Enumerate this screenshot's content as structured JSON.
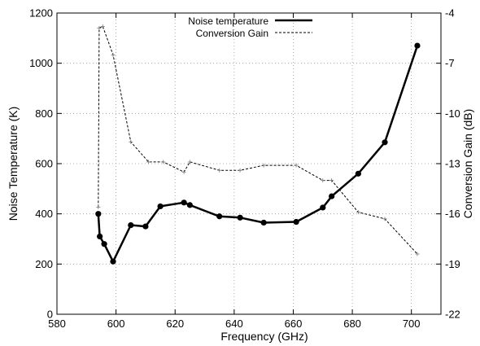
{
  "chart_data": {
    "type": "line",
    "title": "",
    "xlabel": "Frequency (GHz)",
    "ylabel": "Noise Temperature (K)",
    "y2label": "Conversion Gain (dB)",
    "xlim": [
      580,
      710
    ],
    "ylim": [
      0,
      1200
    ],
    "y2lim": [
      -22,
      -4
    ],
    "xticks": [
      580,
      600,
      620,
      640,
      660,
      680,
      700
    ],
    "yticks": [
      0,
      200,
      400,
      600,
      800,
      1000,
      1200
    ],
    "y2ticks": [
      -22,
      -19,
      -16,
      -13,
      -10,
      -7,
      -4
    ],
    "grid": true,
    "legend_position": "top-center",
    "series": [
      {
        "name": "Noise temperature",
        "axis": "left",
        "style": "solid-thick",
        "marker": "filled-circle",
        "color": "#000000",
        "x": [
          594,
          594.5,
          596,
          599,
          605,
          610,
          615,
          623,
          625,
          635,
          642,
          650,
          661,
          670,
          673,
          682,
          691,
          702
        ],
        "y": [
          400,
          310,
          280,
          210,
          355,
          350,
          430,
          445,
          435,
          390,
          385,
          365,
          368,
          425,
          470,
          560,
          685,
          1070
        ]
      },
      {
        "name": "Conversion Gain",
        "axis": "right",
        "style": "dashed-thin",
        "marker": "small-plus",
        "color": "#000000",
        "x": [
          594,
          594.3,
          595.5,
          599,
          605,
          611,
          616,
          623,
          625,
          635,
          642,
          650,
          661,
          670,
          673,
          682,
          691,
          702
        ],
        "y": [
          -15.6,
          -4.9,
          -4.8,
          -6.5,
          -11.7,
          -12.9,
          -12.9,
          -13.5,
          -12.9,
          -13.4,
          -13.4,
          -13.1,
          -13.1,
          -14.0,
          -14.0,
          -15.9,
          -16.3,
          -18.4
        ]
      }
    ]
  }
}
